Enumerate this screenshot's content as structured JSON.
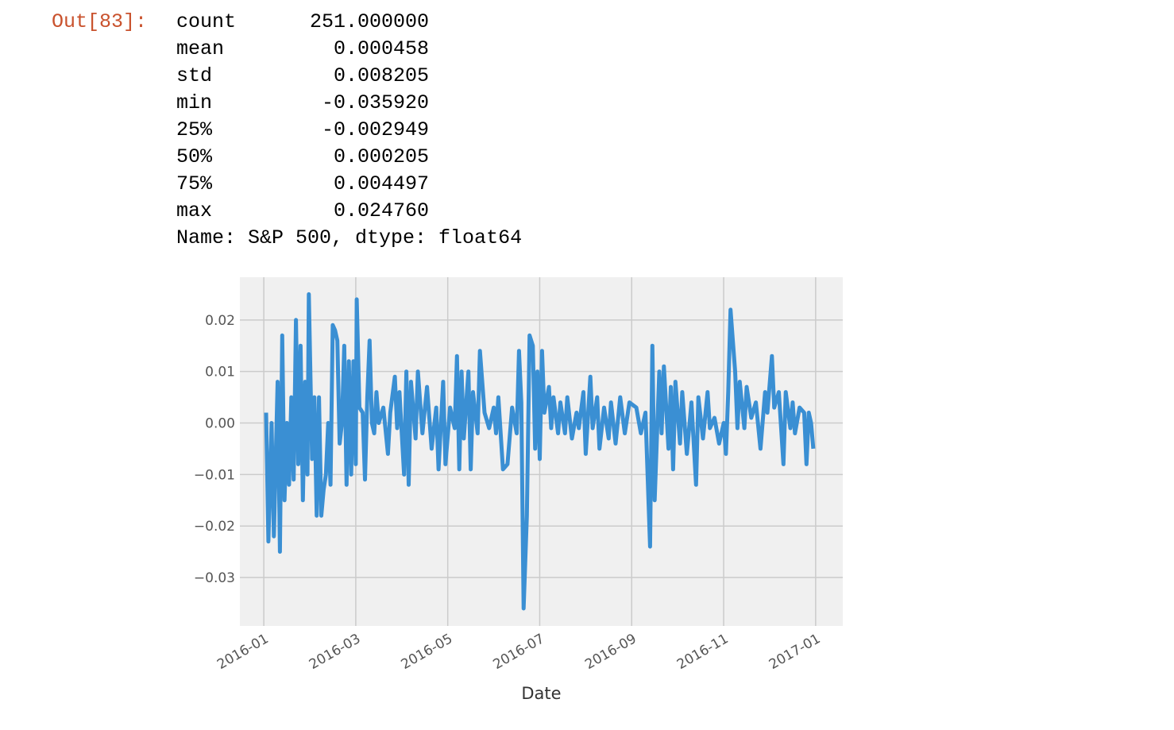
{
  "prompt": "Out[83]:",
  "table": {
    "rows": [
      [
        "count",
        "251.000000"
      ],
      [
        "mean",
        "0.000458"
      ],
      [
        "std",
        "0.008205"
      ],
      [
        "min",
        "-0.035920"
      ],
      [
        "25%",
        "-0.002949"
      ],
      [
        "50%",
        "0.000205"
      ],
      [
        "75%",
        "0.004497"
      ],
      [
        "max",
        "0.024760"
      ]
    ],
    "footer": "Name: S&P 500, dtype: float64"
  },
  "chart_data": {
    "type": "line",
    "x_label": "Date",
    "color": "#3a8fd3",
    "grid": true,
    "xlim": [
      -0.52,
      12.59
    ],
    "ylim": [
      -0.0394,
      0.0283
    ],
    "xticks": [
      {
        "value": 0,
        "label": "2016-01"
      },
      {
        "value": 2,
        "label": "2016-03"
      },
      {
        "value": 4,
        "label": "2016-05"
      },
      {
        "value": 6,
        "label": "2016-07"
      },
      {
        "value": 8,
        "label": "2016-09"
      },
      {
        "value": 10,
        "label": "2016-11"
      },
      {
        "value": 12,
        "label": "2017-01"
      }
    ],
    "yticks": [
      0.02,
      0.01,
      {
        "value": 0,
        "label": "0.00"
      },
      {
        "value": -0.01,
        "label": "−0.01"
      },
      {
        "value": -0.02,
        "label": "−0.02"
      },
      {
        "value": -0.03,
        "label": "−0.03"
      }
    ],
    "x": [
      0.05,
      0.1,
      0.17,
      0.22,
      0.3,
      0.35,
      0.4,
      0.45,
      0.5,
      0.55,
      0.6,
      0.65,
      0.7,
      0.75,
      0.8,
      0.85,
      0.9,
      0.95,
      0.98,
      1.05,
      1.1,
      1.15,
      1.2,
      1.25,
      1.3,
      1.35,
      1.4,
      1.45,
      1.5,
      1.55,
      1.6,
      1.65,
      1.7,
      1.75,
      1.8,
      1.85,
      1.9,
      1.95,
      2.0,
      2.02,
      2.08,
      2.15,
      2.2,
      2.25,
      2.3,
      2.35,
      2.4,
      2.45,
      2.5,
      2.6,
      2.7,
      2.75,
      2.85,
      2.9,
      2.95,
      3.05,
      3.1,
      3.15,
      3.2,
      3.3,
      3.35,
      3.45,
      3.55,
      3.65,
      3.75,
      3.8,
      3.9,
      3.95,
      4.05,
      4.15,
      4.2,
      4.25,
      4.3,
      4.35,
      4.45,
      4.5,
      4.55,
      4.65,
      4.7,
      4.8,
      4.9,
      5.0,
      5.05,
      5.1,
      5.2,
      5.3,
      5.4,
      5.5,
      5.55,
      5.6,
      5.65,
      5.72,
      5.78,
      5.85,
      5.9,
      5.95,
      6.0,
      6.05,
      6.1,
      6.2,
      6.25,
      6.3,
      6.4,
      6.45,
      6.55,
      6.6,
      6.7,
      6.8,
      6.85,
      6.95,
      7.0,
      7.1,
      7.15,
      7.25,
      7.3,
      7.4,
      7.5,
      7.55,
      7.65,
      7.75,
      7.85,
      7.95,
      8.1,
      8.2,
      8.3,
      8.4,
      8.45,
      8.5,
      8.6,
      8.65,
      8.7,
      8.8,
      8.85,
      8.9,
      8.95,
      9.05,
      9.1,
      9.2,
      9.3,
      9.4,
      9.45,
      9.55,
      9.65,
      9.7,
      9.8,
      9.9,
      10.0,
      10.05,
      10.1,
      10.15,
      10.25,
      10.3,
      10.35,
      10.45,
      10.5,
      10.6,
      10.7,
      10.8,
      10.9,
      10.95,
      11.05,
      11.1,
      11.2,
      11.3,
      11.35,
      11.45,
      11.5,
      11.55,
      11.65,
      11.75,
      11.8,
      11.85,
      11.9,
      11.95
    ],
    "values": [
      0.002,
      -0.023,
      0.0,
      -0.022,
      0.008,
      -0.025,
      0.017,
      -0.015,
      0.0,
      -0.012,
      0.005,
      -0.011,
      0.02,
      -0.008,
      0.015,
      -0.015,
      0.008,
      -0.01,
      0.025,
      -0.007,
      0.005,
      -0.018,
      0.005,
      -0.018,
      -0.013,
      -0.01,
      0.0,
      -0.012,
      0.019,
      0.018,
      0.016,
      -0.004,
      0.0,
      0.015,
      -0.012,
      0.012,
      -0.01,
      0.012,
      -0.008,
      0.024,
      0.003,
      0.002,
      -0.011,
      0.005,
      0.016,
      0.0,
      -0.002,
      0.006,
      0.0,
      0.003,
      -0.006,
      0.002,
      0.009,
      -0.001,
      0.006,
      -0.01,
      0.01,
      -0.012,
      0.008,
      -0.003,
      0.01,
      -0.002,
      0.007,
      -0.005,
      0.003,
      -0.009,
      0.008,
      -0.008,
      0.003,
      -0.001,
      0.013,
      -0.009,
      0.01,
      -0.003,
      0.01,
      -0.009,
      0.006,
      -0.002,
      0.014,
      0.002,
      -0.001,
      0.003,
      -0.002,
      0.005,
      -0.009,
      -0.008,
      0.003,
      -0.002,
      0.014,
      0.004,
      -0.036,
      -0.018,
      0.017,
      0.015,
      -0.005,
      0.01,
      -0.007,
      0.014,
      0.002,
      0.007,
      -0.001,
      0.005,
      -0.002,
      0.004,
      -0.002,
      0.005,
      -0.003,
      0.002,
      -0.001,
      0.006,
      -0.006,
      0.009,
      -0.001,
      0.005,
      -0.005,
      0.003,
      -0.003,
      0.004,
      -0.004,
      0.005,
      -0.002,
      0.004,
      0.003,
      -0.002,
      0.002,
      -0.024,
      0.015,
      -0.015,
      0.01,
      -0.002,
      0.011,
      -0.005,
      0.007,
      -0.009,
      0.008,
      -0.004,
      0.006,
      -0.006,
      0.004,
      -0.012,
      0.005,
      -0.003,
      0.006,
      -0.001,
      0.001,
      -0.004,
      0.0,
      -0.006,
      0.006,
      0.022,
      0.01,
      -0.001,
      0.008,
      -0.001,
      0.007,
      0.001,
      0.004,
      -0.005,
      0.006,
      0.002,
      0.013,
      0.003,
      0.006,
      -0.008,
      0.006,
      -0.001,
      0.004,
      -0.002,
      0.003,
      0.002,
      -0.008,
      0.002,
      0.0,
      -0.005
    ]
  }
}
